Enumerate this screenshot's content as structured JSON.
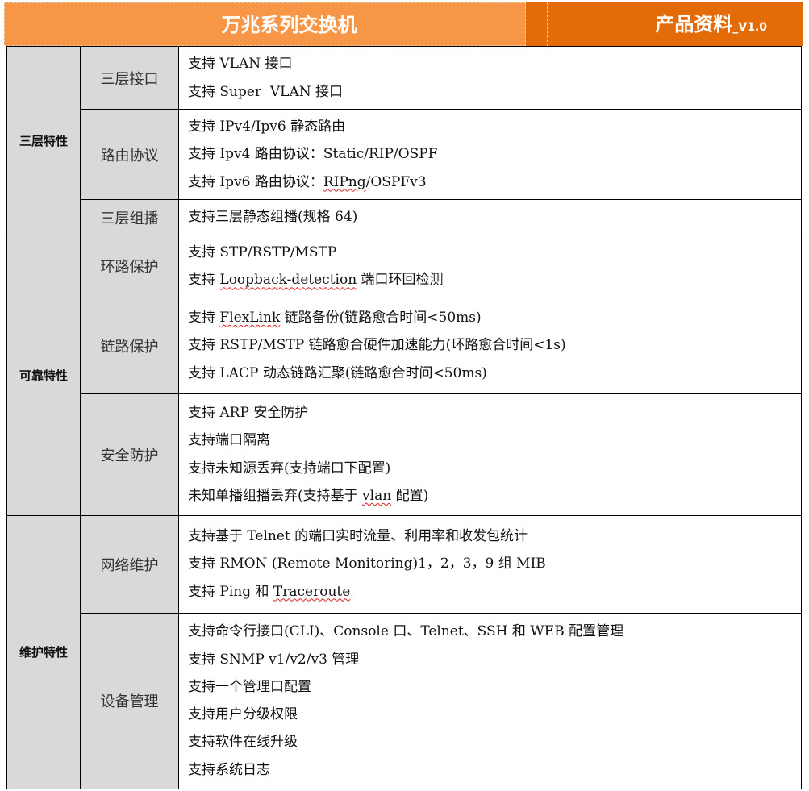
{
  "header": {
    "title": "万兆系列交换机",
    "doc_label": "产品资料",
    "version": "_V1.0",
    "colors": {
      "left": "#F79646",
      "right": "#E36C09"
    }
  },
  "groups": [
    {
      "name": "三层特性",
      "rows": [
        {
          "sub": "三层接口",
          "h": 78,
          "items": [
            [
              {
                "t": "支持 VLAN 接口"
              }
            ],
            [
              {
                "t": "支持 Super  VLAN 接口"
              }
            ]
          ]
        },
        {
          "sub": "路由协议",
          "h": 112,
          "items": [
            [
              {
                "t": "支持 IPv4/Ipv6 静态路由"
              }
            ],
            [
              {
                "t": "支持 Ipv4 路由协议：Static/RIP/OSPF"
              }
            ],
            [
              {
                "t": "支持 Ipv6 路由协议："
              },
              {
                "t": "RIPng",
                "w": true
              },
              {
                "t": "/OSPFv3"
              }
            ]
          ]
        },
        {
          "sub": "三层组播",
          "h": 44,
          "items": [
            [
              {
                "t": "支持三层静态组播(规格 64)"
              }
            ]
          ]
        }
      ]
    },
    {
      "name": "可靠特性",
      "rows": [
        {
          "sub": "环路保护",
          "h": 77,
          "items": [
            [
              {
                "t": "支持 STP/RSTP/MSTP"
              }
            ],
            [
              {
                "t": "支持 "
              },
              {
                "t": "Loopback-detection",
                "w": true
              },
              {
                "t": " 端口环回检测"
              }
            ]
          ]
        },
        {
          "sub": "链路保护",
          "h": 119,
          "items": [
            [
              {
                "t": "支持 "
              },
              {
                "t": "FlexLink",
                "w": true
              },
              {
                "t": " 链路备份(链路愈合时间<50ms)"
              }
            ],
            [
              {
                "t": "支持 RSTP/MSTP 链路愈合硬件加速能力(环路愈合时间<1s)"
              }
            ],
            [
              {
                "t": "支持 LACP 动态链路汇聚(链路愈合时间<50ms)"
              }
            ]
          ]
        },
        {
          "sub": "安全防护",
          "h": 151,
          "items": [
            [
              {
                "t": "支持 ARP 安全防护"
              }
            ],
            [
              {
                "t": "支持端口隔离"
              }
            ],
            [
              {
                "t": "支持未知源丢弃(支持端口下配置)"
              }
            ],
            [
              {
                "t": "未知单播组播丢弃(支持基于 "
              },
              {
                "t": "vlan",
                "w": true
              },
              {
                "t": " 配置)"
              }
            ]
          ]
        }
      ]
    },
    {
      "name": "维护特性",
      "rows": [
        {
          "sub": "网络维护",
          "h": 121,
          "items": [
            [
              {
                "t": "支持基于 Telnet 的端口实时流量、利用率和收发包统计"
              }
            ],
            [
              {
                "t": "支持 RMON (Remote Monitoring)1，2，3，9 组 MIB"
              }
            ],
            [
              {
                "t": "支持 Ping 和 "
              },
              {
                "t": "Traceroute",
                "w": true
              }
            ]
          ]
        },
        {
          "sub": "设备管理",
          "h": 218,
          "items": [
            [
              {
                "t": "支持命令行接口(CLI)、Console 口、Telnet、SSH 和 WEB 配置管理"
              }
            ],
            [
              {
                "t": "支持 SNMP v1/v2/v3 管理"
              }
            ],
            [
              {
                "t": "支持一个管理口配置"
              }
            ],
            [
              {
                "t": "支持用户分级权限"
              }
            ],
            [
              {
                "t": "支持软件在线升级"
              }
            ],
            [
              {
                "t": "支持系统日志"
              }
            ]
          ]
        }
      ]
    }
  ]
}
